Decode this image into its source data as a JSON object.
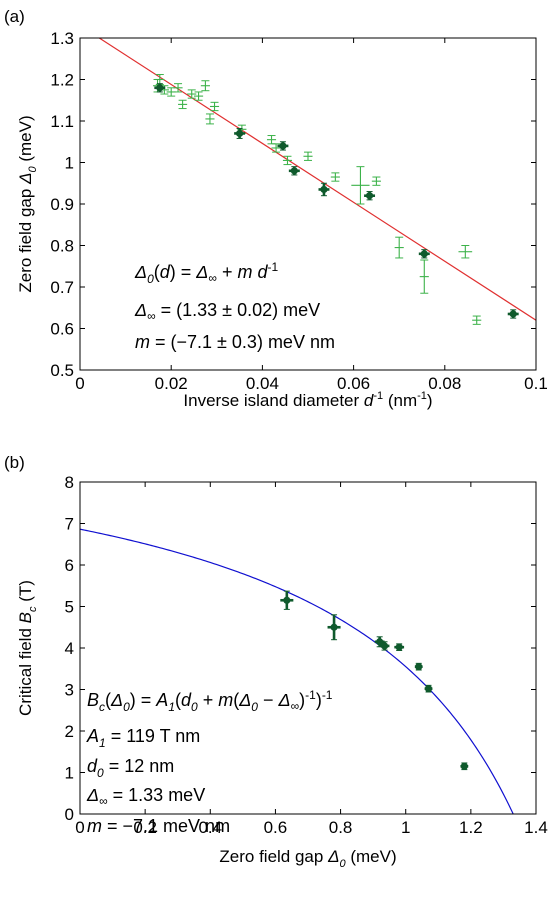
{
  "chart_data": [
    {
      "type": "scatter",
      "panel_label": "(a)",
      "xlabel": "Inverse island diameter d⁻¹ (nm⁻¹)",
      "ylabel": "Zero field gap Δ₀ (meV)",
      "xlim": [
        0,
        0.1
      ],
      "ylim": [
        0.5,
        1.3
      ],
      "xticks": [
        "0",
        "0.02",
        "0.04",
        "0.06",
        "0.08",
        "0.1"
      ],
      "yticks": [
        "0.5",
        "0.6",
        "0.7",
        "0.8",
        "0.9",
        "1",
        "1.1",
        "1.2",
        "1.3"
      ],
      "grid": false,
      "colors": {
        "light": "#3db24a",
        "dark": "#0f5a2c",
        "fit": "#e03030"
      },
      "fit_line": {
        "intercept": 1.33,
        "slope": -7.1
      },
      "series": [
        {
          "style": "light",
          "points": [
            {
              "x": 0.017,
              "y": 1.185,
              "ye": 0.015,
              "xe": 0.001
            },
            {
              "x": 0.0175,
              "y": 1.2,
              "ye": 0.012,
              "xe": 0.001
            },
            {
              "x": 0.0185,
              "y": 1.175,
              "ye": 0.01,
              "xe": 0.001
            },
            {
              "x": 0.02,
              "y": 1.17,
              "ye": 0.01,
              "xe": 0.001
            },
            {
              "x": 0.0215,
              "y": 1.18,
              "ye": 0.01,
              "xe": 0.001
            },
            {
              "x": 0.0225,
              "y": 1.14,
              "ye": 0.01,
              "xe": 0.001
            },
            {
              "x": 0.0245,
              "y": 1.165,
              "ye": 0.01,
              "xe": 0.001
            },
            {
              "x": 0.026,
              "y": 1.16,
              "ye": 0.01,
              "xe": 0.001
            },
            {
              "x": 0.0275,
              "y": 1.185,
              "ye": 0.012,
              "xe": 0.001
            },
            {
              "x": 0.0285,
              "y": 1.105,
              "ye": 0.012,
              "xe": 0.001
            },
            {
              "x": 0.0295,
              "y": 1.135,
              "ye": 0.01,
              "xe": 0.001
            },
            {
              "x": 0.0355,
              "y": 1.08,
              "ye": 0.01,
              "xe": 0.001
            },
            {
              "x": 0.042,
              "y": 1.055,
              "ye": 0.01,
              "xe": 0.001
            },
            {
              "x": 0.043,
              "y": 1.035,
              "ye": 0.01,
              "xe": 0.001
            },
            {
              "x": 0.0455,
              "y": 1.005,
              "ye": 0.01,
              "xe": 0.001
            },
            {
              "x": 0.05,
              "y": 1.015,
              "ye": 0.01,
              "xe": 0.001
            },
            {
              "x": 0.056,
              "y": 0.965,
              "ye": 0.01,
              "xe": 0.001
            },
            {
              "x": 0.0615,
              "y": 0.945,
              "ye": 0.045,
              "xe": 0.002
            },
            {
              "x": 0.065,
              "y": 0.955,
              "ye": 0.01,
              "xe": 0.001
            },
            {
              "x": 0.07,
              "y": 0.795,
              "ye": 0.025,
              "xe": 0.001
            },
            {
              "x": 0.0755,
              "y": 0.725,
              "ye": 0.04,
              "xe": 0.001
            },
            {
              "x": 0.0845,
              "y": 0.785,
              "ye": 0.015,
              "xe": 0.0015
            },
            {
              "x": 0.087,
              "y": 0.62,
              "ye": 0.01,
              "xe": 0.001
            }
          ]
        },
        {
          "style": "dark",
          "points": [
            {
              "x": 0.0175,
              "y": 1.18,
              "ye": 0.01,
              "xe": 0.0012
            },
            {
              "x": 0.035,
              "y": 1.07,
              "ye": 0.012,
              "xe": 0.0012
            },
            {
              "x": 0.0445,
              "y": 1.04,
              "ye": 0.01,
              "xe": 0.0012
            },
            {
              "x": 0.047,
              "y": 0.98,
              "ye": 0.01,
              "xe": 0.0012
            },
            {
              "x": 0.0535,
              "y": 0.935,
              "ye": 0.015,
              "xe": 0.0012
            },
            {
              "x": 0.0635,
              "y": 0.92,
              "ye": 0.01,
              "xe": 0.0012
            },
            {
              "x": 0.0755,
              "y": 0.78,
              "ye": 0.01,
              "xe": 0.0012
            },
            {
              "x": 0.095,
              "y": 0.635,
              "ye": 0.01,
              "xe": 0.0012
            }
          ]
        }
      ],
      "annotation": {
        "line1": "Δ₀(d) = Δ∞ + m d⁻¹",
        "line2": "Δ∞ = (1.33 ± 0.02) meV",
        "line3": "m = (−7.1 ± 0.3) meV nm"
      }
    },
    {
      "type": "scatter",
      "panel_label": "(b)",
      "xlabel": "Zero field gap Δ₀ (meV)",
      "ylabel": "Critical field Bc (T)",
      "xlim": [
        0,
        1.4
      ],
      "ylim": [
        0,
        8
      ],
      "xticks": [
        "0",
        "0.2",
        "0.4",
        "0.6",
        "0.8",
        "1",
        "1.2",
        "1.4"
      ],
      "yticks": [
        "0",
        "1",
        "2",
        "3",
        "4",
        "5",
        "6",
        "7",
        "8"
      ],
      "grid": false,
      "colors": {
        "light": "#3db24a",
        "dark": "#0f5a2c",
        "fit": "#1010d0"
      },
      "fit_curve": {
        "A1": 119,
        "d0": 12,
        "delta_inf": 1.33,
        "m": -7.1
      },
      "series": [
        {
          "style": "dark",
          "points": [
            {
              "x": 0.635,
              "y": 5.15,
              "ye": 0.22,
              "xe": 0.02
            },
            {
              "x": 0.78,
              "y": 4.5,
              "ye": 0.3,
              "xe": 0.02
            },
            {
              "x": 0.92,
              "y": 4.15,
              "ye": 0.12,
              "xe": 0.015
            },
            {
              "x": 0.935,
              "y": 4.05,
              "ye": 0.1,
              "xe": 0.015
            },
            {
              "x": 0.98,
              "y": 4.02,
              "ye": 0.08,
              "xe": 0.015
            },
            {
              "x": 1.04,
              "y": 3.55,
              "ye": 0.08,
              "xe": 0.012
            },
            {
              "x": 1.07,
              "y": 3.02,
              "ye": 0.08,
              "xe": 0.012
            },
            {
              "x": 1.18,
              "y": 1.15,
              "ye": 0.08,
              "xe": 0.012
            }
          ]
        }
      ],
      "annotation": {
        "line1": "Bc(Δ₀) = A₁(d₀ + m(Δ₀ − Δ∞)⁻¹)⁻¹",
        "line2": "A₁ = 119 T nm",
        "line3": "d₀ = 12 nm",
        "line4": "Δ∞ = 1.33 meV",
        "line5": "m = −7.1 meV nm"
      }
    }
  ]
}
